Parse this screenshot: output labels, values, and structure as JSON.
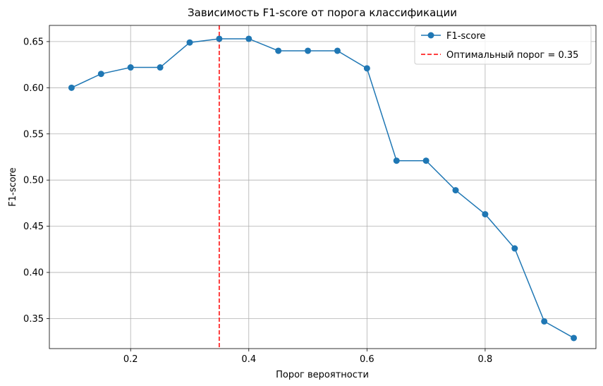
{
  "chart_data": {
    "type": "line",
    "title": "Зависимость F1-score от порога классификации",
    "xlabel": "Порог вероятности",
    "ylabel": "F1-score",
    "xlim": [
      0.0625,
      0.9875
    ],
    "ylim": [
      0.3175,
      0.6675
    ],
    "xticks": [
      0.2,
      0.4,
      0.6,
      0.8
    ],
    "xtick_labels": [
      "0.2",
      "0.4",
      "0.6",
      "0.8"
    ],
    "yticks": [
      0.35,
      0.4,
      0.45,
      0.5,
      0.55,
      0.6,
      0.65
    ],
    "ytick_labels": [
      "0.35",
      "0.40",
      "0.45",
      "0.50",
      "0.55",
      "0.60",
      "0.65"
    ],
    "grid": true,
    "legend_position": "top-right",
    "series": [
      {
        "name": "F1-score",
        "color": "#1f77b4",
        "marker": "circle",
        "x": [
          0.1,
          0.15,
          0.2,
          0.25,
          0.3,
          0.35,
          0.4,
          0.45,
          0.5,
          0.55,
          0.6,
          0.65,
          0.7,
          0.75,
          0.8,
          0.85,
          0.9,
          0.95
        ],
        "y": [
          0.6,
          0.615,
          0.622,
          0.622,
          0.649,
          0.653,
          0.653,
          0.64,
          0.64,
          0.64,
          0.621,
          0.521,
          0.521,
          0.489,
          0.463,
          0.426,
          0.347,
          0.329
        ]
      }
    ],
    "vline": {
      "x": 0.35,
      "color": "#ff0000",
      "style": "dashed",
      "label": "Оптимальный порог = 0.35"
    }
  }
}
